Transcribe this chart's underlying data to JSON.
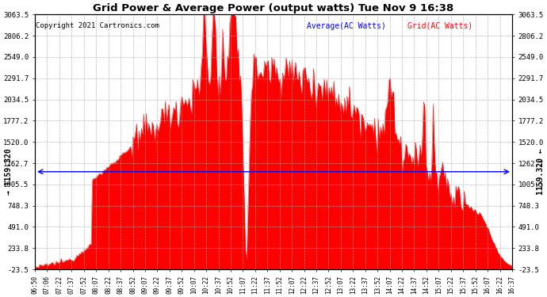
{
  "title": "Grid Power & Average Power (output watts) Tue Nov 9 16:38",
  "copyright": "Copyright 2021 Cartronics.com",
  "legend_avg": "Average(AC Watts)",
  "legend_grid": "Grid(AC Watts)",
  "avg_value": 1159.32,
  "avg_label": "1159.320",
  "y_min": -23.5,
  "y_max": 3063.5,
  "yticks": [
    -23.5,
    233.8,
    491.0,
    748.3,
    1005.5,
    1262.7,
    1520.0,
    1777.2,
    2034.5,
    2291.7,
    2549.0,
    2806.2,
    3063.5
  ],
  "x_labels": [
    "06:50",
    "07:06",
    "07:22",
    "07:37",
    "07:52",
    "08:07",
    "08:22",
    "08:37",
    "08:52",
    "09:07",
    "09:22",
    "09:37",
    "09:52",
    "10:07",
    "10:22",
    "10:37",
    "10:52",
    "11:07",
    "11:22",
    "11:37",
    "11:52",
    "12:07",
    "12:22",
    "12:37",
    "12:52",
    "13:07",
    "13:22",
    "13:37",
    "13:52",
    "14:07",
    "14:22",
    "14:37",
    "14:52",
    "15:07",
    "15:22",
    "15:37",
    "15:52",
    "16:07",
    "16:22",
    "16:37"
  ],
  "n_points": 400,
  "background_color": "#ffffff",
  "grid_color": "#aaaaaa",
  "fill_color": "#ff0000",
  "line_color": "#ff0000",
  "avg_line_color": "#0000ff",
  "avg_label_color": "#000000",
  "title_color": "#000000",
  "copyright_color": "#000000",
  "legend_avg_color": "#0000ff",
  "legend_grid_color": "#ff0000"
}
